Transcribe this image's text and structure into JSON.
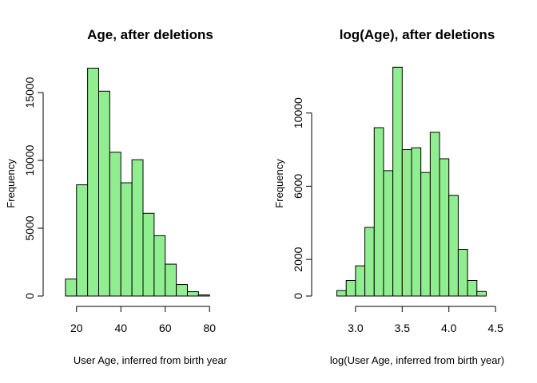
{
  "chart_data": [
    {
      "type": "histogram",
      "title": "Age, after deletions",
      "xlabel": "User Age, inferred from birth year",
      "ylabel": "Frequency",
      "xlim": [
        10,
        90
      ],
      "ylim": [
        0,
        17000
      ],
      "x_ticks": [
        20,
        40,
        60,
        80
      ],
      "x_tick_labels": [
        "20",
        "40",
        "60",
        "80"
      ],
      "y_ticks": [
        0,
        5000,
        10000,
        15000
      ],
      "y_tick_labels": [
        "0",
        "5000",
        "10000",
        "15000"
      ],
      "bin_edges": [
        15,
        20,
        25,
        30,
        35,
        40,
        45,
        50,
        55,
        60,
        65,
        70,
        75,
        80
      ],
      "values": [
        1250,
        8200,
        16800,
        15100,
        10600,
        8350,
        10050,
        6100,
        4450,
        2350,
        850,
        320,
        80
      ],
      "bar_color": "#90ee90"
    },
    {
      "type": "histogram",
      "title": "log(Age), after deletions",
      "xlabel": "log(User Age, inferred from birth year)",
      "ylabel": "Frequency",
      "xlim": [
        2.65,
        4.55
      ],
      "ylim": [
        0,
        12600
      ],
      "x_ticks": [
        3.0,
        3.5,
        4.0,
        4.5
      ],
      "x_tick_labels": [
        "3.0",
        "3.5",
        "4.0",
        "4.5"
      ],
      "y_ticks": [
        0,
        2000,
        6000,
        10000
      ],
      "y_tick_labels": [
        "0",
        "2000",
        "6000",
        "10000"
      ],
      "bin_edges": [
        2.8,
        2.9,
        3.0,
        3.1,
        3.2,
        3.3,
        3.4,
        3.5,
        3.6,
        3.7,
        3.8,
        3.9,
        4.0,
        4.1,
        4.2,
        4.3,
        4.4
      ],
      "values": [
        300,
        850,
        1650,
        3750,
        9200,
        6850,
        12500,
        8000,
        8100,
        6750,
        8950,
        7500,
        5500,
        2550,
        850,
        250
      ],
      "bar_color": "#90ee90"
    }
  ]
}
